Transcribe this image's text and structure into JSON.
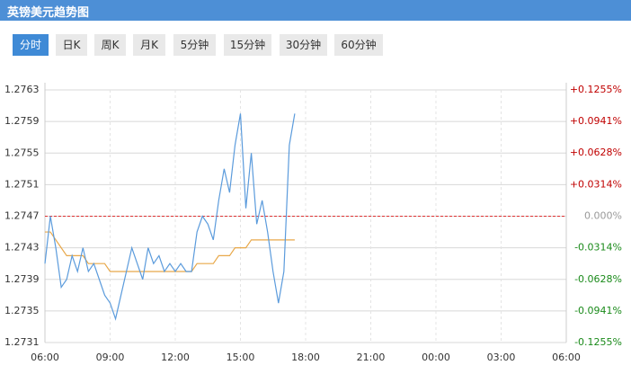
{
  "header": {
    "title": "英镑美元趋势图"
  },
  "tabs": [
    "分时",
    "日K",
    "周K",
    "月K",
    "5分钟",
    "15分钟",
    "30分钟",
    "60分钟"
  ],
  "chart_data": {
    "type": "line",
    "x": [
      6.0,
      6.25,
      6.5,
      6.75,
      7.0,
      7.25,
      7.5,
      7.75,
      8.0,
      8.25,
      8.5,
      8.75,
      9.0,
      9.25,
      9.5,
      9.75,
      10.0,
      10.25,
      10.5,
      10.75,
      11.0,
      11.25,
      11.5,
      11.75,
      12.0,
      12.25,
      12.5,
      12.75,
      13.0,
      13.25,
      13.5,
      13.75,
      14.0,
      14.25,
      14.5,
      14.75,
      15.0,
      15.25,
      15.5,
      15.75,
      16.0,
      16.25,
      16.5,
      16.75,
      17.0,
      17.25,
      17.5
    ],
    "series": [
      {
        "color": "#5b9bdc",
        "values": [
          1.2741,
          1.2747,
          1.2743,
          1.2738,
          1.2739,
          1.2742,
          1.274,
          1.2743,
          1.274,
          1.2741,
          1.2739,
          1.2737,
          1.2736,
          1.2734,
          1.2737,
          1.274,
          1.2743,
          1.2741,
          1.2739,
          1.2743,
          1.2741,
          1.2742,
          1.274,
          1.2741,
          1.274,
          1.2741,
          1.274,
          1.274,
          1.2745,
          1.2747,
          1.2746,
          1.2744,
          1.2749,
          1.2753,
          1.275,
          1.2756,
          1.276,
          1.2748,
          1.2755,
          1.2746,
          1.2749,
          1.2745,
          1.274,
          1.2736,
          1.274,
          1.2756,
          1.276
        ]
      },
      {
        "color": "#e8a84a",
        "values": [
          1.2745,
          1.2745,
          1.2744,
          1.2743,
          1.2742,
          1.2742,
          1.2742,
          1.2742,
          1.2741,
          1.2741,
          1.2741,
          1.2741,
          1.274,
          1.274,
          1.274,
          1.274,
          1.274,
          1.274,
          1.274,
          1.274,
          1.274,
          1.274,
          1.274,
          1.274,
          1.274,
          1.274,
          1.274,
          1.274,
          1.2741,
          1.2741,
          1.2741,
          1.2741,
          1.2742,
          1.2742,
          1.2742,
          1.2743,
          1.2743,
          1.2743,
          1.2744,
          1.2744,
          1.2744,
          1.2744,
          1.2744,
          1.2744,
          1.2744,
          1.2744,
          1.2744
        ]
      }
    ],
    "baseline": 1.2747,
    "xlim": [
      6,
      30
    ],
    "xticks": [
      {
        "value": 6,
        "label": "06:00"
      },
      {
        "value": 9,
        "label": "09:00"
      },
      {
        "value": 12,
        "label": "12:00"
      },
      {
        "value": 15,
        "label": "15:00"
      },
      {
        "value": 18,
        "label": "18:00"
      },
      {
        "value": 21,
        "label": "21:00"
      },
      {
        "value": 24,
        "label": "00:00"
      },
      {
        "value": 27,
        "label": "03:00"
      },
      {
        "value": 30,
        "label": "06:00"
      }
    ],
    "ylim": [
      1.2731,
      1.2763
    ],
    "yticks": [
      1.2731,
      1.2735,
      1.2739,
      1.2743,
      1.2747,
      1.2751,
      1.2755,
      1.2759,
      1.2763
    ],
    "y2lim": [
      -0.1255,
      0.1255
    ],
    "y2ticks": [
      {
        "value": -0.1255,
        "label": "-0.1255%"
      },
      {
        "value": -0.0941,
        "label": "-0.0941%"
      },
      {
        "value": -0.0628,
        "label": "-0.0628%"
      },
      {
        "value": -0.0314,
        "label": "-0.0314%"
      },
      {
        "value": 0,
        "label": "0.000%"
      },
      {
        "value": 0.0314,
        "label": "+0.0314%"
      },
      {
        "value": 0.0628,
        "label": "+0.0628%"
      },
      {
        "value": 0.0941,
        "label": "+0.0941%"
      },
      {
        "value": 0.1255,
        "label": "+0.1255%"
      }
    ],
    "grid": true
  }
}
